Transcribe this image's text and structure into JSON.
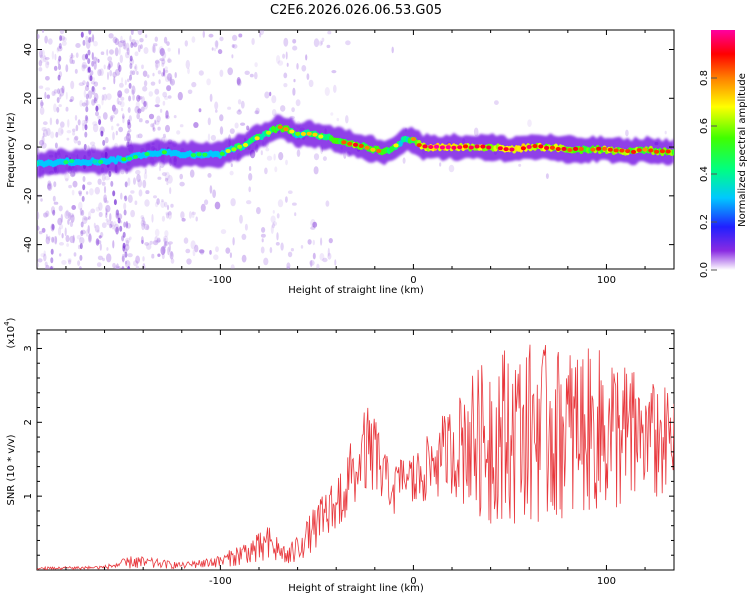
{
  "title": "C2E6.2026.026.06.53.G05",
  "chart_data": [
    {
      "type": "heatmap",
      "name": "spectrogram",
      "xlabel": "Height of straight line (km)",
      "ylabel": "Frequency (Hz)",
      "xlim": [
        -195,
        135
      ],
      "ylim": [
        -50,
        48
      ],
      "xticks": [
        -100,
        0,
        100
      ],
      "yticks": [
        -40,
        -20,
        0,
        20,
        40
      ],
      "colorbar": {
        "label": "Normalized spectral amplitude",
        "ticks": [
          0.0,
          0.2,
          0.4,
          0.6,
          0.8
        ],
        "range": [
          0,
          1
        ]
      },
      "ridge": {
        "x": [
          -195,
          -180,
          -165,
          -150,
          -140,
          -130,
          -120,
          -110,
          -100,
          -95,
          -90,
          -85,
          -80,
          -75,
          -70,
          -65,
          -60,
          -55,
          -50,
          -45,
          -40,
          -35,
          -30,
          -25,
          -20,
          -15,
          -10,
          -5,
          0,
          5,
          10,
          20,
          30,
          40,
          50,
          60,
          70,
          80,
          90,
          100,
          110,
          120,
          130,
          135
        ],
        "freq": [
          -7,
          -6,
          -6,
          -5,
          -3,
          -2,
          -3,
          -3,
          -3,
          -1,
          0,
          2,
          4,
          6,
          8,
          7,
          5,
          6,
          5,
          4,
          3,
          2,
          1,
          0,
          -1,
          -2,
          0,
          3,
          3,
          0,
          0,
          0,
          0,
          0,
          -1,
          0,
          0,
          -1,
          -1,
          -1,
          -2,
          -1,
          -2,
          -2
        ],
        "amplitude": [
          0.35,
          0.4,
          0.4,
          0.45,
          0.5,
          0.5,
          0.45,
          0.45,
          0.5,
          0.6,
          0.65,
          0.65,
          0.7,
          0.65,
          0.8,
          0.75,
          0.6,
          0.7,
          0.7,
          0.65,
          0.75,
          0.8,
          0.85,
          0.8,
          0.75,
          0.8,
          0.7,
          0.6,
          0.75,
          0.9,
          0.95,
          0.95,
          0.9,
          0.85,
          0.9,
          0.9,
          0.85,
          0.85,
          0.8,
          0.85,
          0.85,
          0.8,
          0.8,
          0.8
        ]
      }
    },
    {
      "type": "line",
      "name": "snr",
      "xlabel": "Height of straight line (km)",
      "ylabel": "SNR (10 * v/v)",
      "yscale_label": "(x10",
      "yscale_exponent": "4",
      "xlim": [
        -195,
        135
      ],
      "ylim": [
        0,
        3.25
      ],
      "xticks": [
        -100,
        0,
        100
      ],
      "yticks": [
        1,
        2,
        3
      ],
      "color": "#e8383d",
      "envelope": {
        "x": [
          -195,
          -160,
          -145,
          -120,
          -100,
          -90,
          -80,
          -75,
          -70,
          -65,
          -60,
          -55,
          -50,
          -45,
          -40,
          -35,
          -30,
          -25,
          -20,
          -15,
          -10,
          -5,
          0,
          5,
          10,
          15,
          20,
          25,
          30,
          40,
          50,
          60,
          70,
          80,
          90,
          100,
          110,
          120,
          130,
          135
        ],
        "upper": [
          0.04,
          0.06,
          0.2,
          0.1,
          0.2,
          0.35,
          0.5,
          0.6,
          0.45,
          0.3,
          0.5,
          0.7,
          0.9,
          1.1,
          1.25,
          1.6,
          1.9,
          2.2,
          2.2,
          1.6,
          1.45,
          1.6,
          1.6,
          1.75,
          1.9,
          2.1,
          2.2,
          2.5,
          2.7,
          2.9,
          3.1,
          3.1,
          3.05,
          3.0,
          3.0,
          3.0,
          2.8,
          2.6,
          2.5,
          2.3
        ],
        "lower": [
          0.0,
          0.01,
          0.02,
          0.02,
          0.04,
          0.06,
          0.08,
          0.1,
          0.08,
          0.05,
          0.1,
          0.2,
          0.3,
          0.4,
          0.5,
          0.6,
          0.7,
          0.9,
          0.9,
          0.8,
          0.75,
          0.8,
          0.85,
          0.9,
          0.95,
          1.0,
          1.0,
          0.9,
          0.8,
          0.6,
          0.6,
          0.6,
          0.7,
          0.7,
          0.8,
          0.8,
          0.85,
          0.9,
          1.0,
          1.1
        ]
      },
      "points": 700
    }
  ]
}
